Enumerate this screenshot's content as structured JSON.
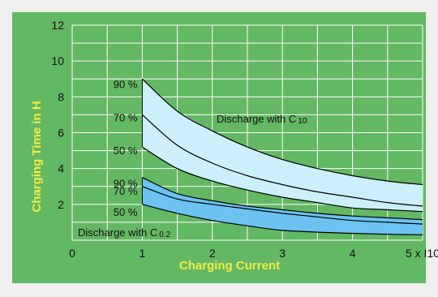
{
  "chart_data": {
    "type": "area",
    "title": "",
    "xlabel": "Charging Current",
    "ylabel": "Charging Time in H",
    "xlim": [
      0,
      5
    ],
    "ylim": [
      0,
      12
    ],
    "x_ticks": [
      "0",
      "1",
      "2",
      "3",
      "4",
      "5 x I10"
    ],
    "y_ticks": [
      "2",
      "4",
      "6",
      "8",
      "10",
      "12"
    ],
    "grid": true,
    "colors": {
      "background": "#63b863",
      "plot_face": "#63b863",
      "grid": "#ffffff",
      "band_c10": "#cdeefb",
      "band_c02": "#6cc2f0",
      "line": "#000000",
      "axis_title": "#f2ec45"
    },
    "x": [
      1,
      1.5,
      2,
      2.5,
      3,
      3.5,
      4,
      4.5,
      5
    ],
    "series": [
      {
        "name": "90 %",
        "group": "Discharge with C10",
        "values": [
          9.0,
          7.2,
          6.1,
          5.2,
          4.5,
          4.0,
          3.6,
          3.3,
          3.1
        ]
      },
      {
        "name": "70 %",
        "group": "Discharge with C10",
        "values": [
          7.0,
          5.3,
          4.3,
          3.6,
          3.1,
          2.7,
          2.4,
          2.1,
          1.9
        ]
      },
      {
        "name": "50 %",
        "group": "Discharge with C10",
        "values": [
          5.2,
          4.0,
          3.3,
          2.8,
          2.4,
          2.1,
          1.8,
          1.7,
          1.6
        ]
      },
      {
        "name": "90 %",
        "group": "Discharge with C0.2",
        "values": [
          3.5,
          2.6,
          2.2,
          1.9,
          1.7,
          1.5,
          1.35,
          1.25,
          1.15
        ]
      },
      {
        "name": "70 %",
        "group": "Discharge with C0.2",
        "values": [
          3.0,
          2.3,
          2.0,
          1.75,
          1.5,
          1.3,
          1.1,
          1.0,
          0.9
        ]
      },
      {
        "name": "50 %",
        "group": "Discharge with C0.2",
        "values": [
          2.0,
          1.5,
          1.1,
          0.8,
          0.55,
          0.45,
          0.38,
          0.33,
          0.3
        ]
      }
    ],
    "annotations": {
      "c10_text": "Discharge with C",
      "c10_sub": "10",
      "c02_text": "Discharge with C",
      "c02_sub": "0.2"
    }
  }
}
